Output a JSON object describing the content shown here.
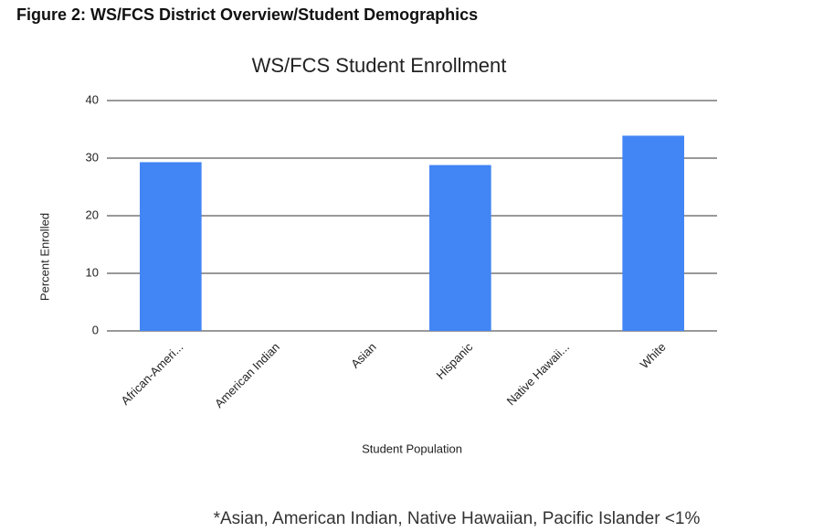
{
  "heading": "Figure 2: WS/FCS District Overview/Student Demographics",
  "chart_data": {
    "type": "bar",
    "title": "WS/FCS Student Enrollment",
    "x_label": "Student Population",
    "y_label": "Percent Enrolled",
    "categories": [
      "African-Ameri...",
      "American Indian",
      "Asian",
      "Hispanic",
      "Native  Hawaii...",
      "White"
    ],
    "values": [
      29.3,
      0,
      0,
      28.8,
      0,
      33.9
    ],
    "color": "#4285f4",
    "ylim": [
      0,
      40
    ],
    "yticks": [
      0,
      10,
      20,
      30,
      40
    ],
    "grid": true
  },
  "footnote": "*Asian, American Indian, Native Hawaiian, Pacific Islander <1%"
}
